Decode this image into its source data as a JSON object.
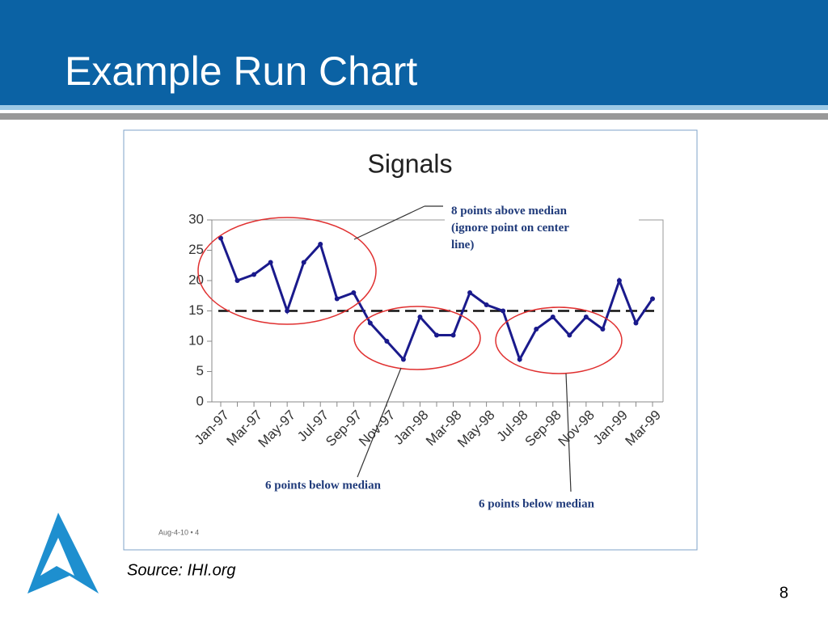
{
  "slide_title": "Example Run Chart",
  "source": "Source: IHI.org",
  "page_number": "8",
  "chart_data": {
    "type": "line",
    "title": "Signals",
    "categories": [
      "Jan-97",
      null,
      "Mar-97",
      null,
      "May-97",
      null,
      "Jul-97",
      null,
      "Sep-97",
      null,
      "Nov-97",
      null,
      "Jan-98",
      null,
      "Mar-98",
      null,
      "May-98",
      null,
      "Jul-98",
      null,
      "Sep-98",
      null,
      "Nov-98",
      null,
      "Jan-99",
      null,
      "Mar-99"
    ],
    "series": [
      {
        "color": "#1a1a8c",
        "values": [
          27,
          20,
          21,
          23,
          15,
          23,
          26,
          17,
          18,
          13,
          10,
          7,
          14,
          11,
          11,
          18,
          16,
          15,
          7,
          12,
          14,
          11,
          14,
          12,
          20,
          13,
          17
        ]
      }
    ],
    "median": 15,
    "ylim": [
      0,
      30
    ],
    "yticks": [
      0,
      5,
      10,
      15,
      20,
      25,
      30
    ],
    "annotations": [
      "8 points above median (ignore point on center line)",
      "6 points below median",
      "6 points below median"
    ],
    "footer": "Aug-4-10 • 4"
  }
}
